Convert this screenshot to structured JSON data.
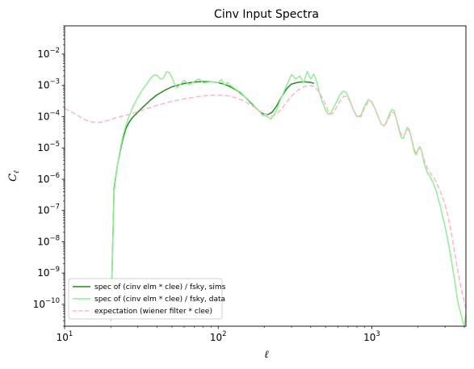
{
  "chart_data": {
    "type": "line",
    "title": "Cinv Input Spectra",
    "xlabel": "ℓ",
    "ylabel": "Cℓ",
    "xscale": "log",
    "yscale": "log",
    "xlim": [
      10,
      4100
    ],
    "ylim": [
      2e-11,
      0.08
    ],
    "grid": false,
    "legend_position": "lower-left",
    "x_ticks": [
      {
        "value": 10,
        "base": "10",
        "exp": "1"
      },
      {
        "value": 100,
        "base": "10",
        "exp": "2"
      },
      {
        "value": 1000,
        "base": "10",
        "exp": "3"
      }
    ],
    "y_ticks": [
      {
        "value": 1e-10,
        "base": "10",
        "exp": "−10"
      },
      {
        "value": 1e-09,
        "base": "10",
        "exp": "−9"
      },
      {
        "value": 1e-08,
        "base": "10",
        "exp": "−8"
      },
      {
        "value": 1e-07,
        "base": "10",
        "exp": "−7"
      },
      {
        "value": 1e-06,
        "base": "10",
        "exp": "−6"
      },
      {
        "value": 1e-05,
        "base": "10",
        "exp": "−5"
      },
      {
        "value": 0.0001,
        "base": "10",
        "exp": "−4"
      },
      {
        "value": 0.001,
        "base": "10",
        "exp": "−3"
      },
      {
        "value": 0.01,
        "base": "10",
        "exp": "−2"
      }
    ],
    "series": [
      {
        "name": "spec of (cinv elm * clee) / fsky, sims",
        "color": "#228b22",
        "style": "solid",
        "x": [
          20,
          21,
          22,
          23,
          24,
          25,
          26,
          27,
          28,
          30,
          33,
          36,
          40,
          45,
          50,
          60,
          70,
          80,
          90,
          100,
          110,
          120,
          135,
          150,
          165,
          180,
          195,
          210,
          225,
          240,
          260,
          280,
          300,
          330,
          360,
          400,
          420
        ],
        "y": [
          3e-11,
          5e-07,
          2.5e-06,
          8e-06,
          2e-05,
          4e-05,
          6e-05,
          8e-05,
          0.0001,
          0.00014,
          0.00022,
          0.00033,
          0.0005,
          0.0007,
          0.0009,
          0.00115,
          0.00128,
          0.00132,
          0.0013,
          0.00122,
          0.00108,
          0.0009,
          0.00065,
          0.00042,
          0.00026,
          0.00017,
          0.000125,
          0.000115,
          0.00014,
          0.00022,
          0.00045,
          0.0008,
          0.0011,
          0.00125,
          0.0013,
          0.00125,
          0.00115
        ]
      },
      {
        "name": "spec of (cinv elm * clee) / fsky, data",
        "color": "#90ee90",
        "style": "solid",
        "x": [
          20,
          21,
          22,
          23,
          24,
          25,
          26,
          27,
          28,
          30,
          32,
          34,
          36,
          38,
          40,
          42,
          44,
          46,
          48,
          50,
          52,
          54,
          57,
          60,
          65,
          70,
          75,
          80,
          90,
          100,
          105,
          110,
          115,
          120,
          130,
          140,
          150,
          165,
          180,
          195,
          210,
          220,
          230,
          240,
          250,
          260,
          280,
          300,
          320,
          340,
          360,
          380,
          400,
          420,
          440,
          460,
          480,
          500,
          520,
          540,
          560,
          590,
          620,
          650,
          680,
          700,
          720,
          760,
          800,
          850,
          900,
          950,
          1000,
          1050,
          1100,
          1150,
          1200,
          1250,
          1300,
          1350,
          1400,
          1450,
          1500,
          1550,
          1600,
          1650,
          1700,
          1750,
          1800,
          1850,
          1900,
          1950,
          2000,
          2050,
          2100,
          2150,
          2200,
          2300,
          2400,
          2500,
          2600,
          2700,
          2800,
          2900,
          3000,
          3100,
          3200,
          3300,
          3400,
          3500,
          3600,
          3700,
          3800,
          3900,
          4000,
          4100
        ],
        "y": [
          3e-11,
          4e-07,
          2.5e-06,
          9e-06,
          2.5e-05,
          5e-05,
          9e-05,
          0.00014,
          0.00022,
          0.00042,
          0.0007,
          0.00105,
          0.0016,
          0.0021,
          0.0021,
          0.0016,
          0.0017,
          0.0027,
          0.0026,
          0.0018,
          0.0011,
          0.00085,
          0.0011,
          0.00145,
          0.00105,
          0.00135,
          0.0016,
          0.0012,
          0.0013,
          0.0012,
          0.00155,
          0.001,
          0.00125,
          0.001,
          0.00075,
          0.0006,
          0.00042,
          0.00028,
          0.00017,
          0.00011,
          0.0001,
          8.5e-05,
          0.00011,
          0.00016,
          0.00028,
          0.00045,
          0.00105,
          0.0022,
          0.0016,
          0.002,
          0.0012,
          0.0028,
          0.0016,
          0.0023,
          0.0012,
          0.0005,
          0.00027,
          0.00016,
          0.00012,
          0.00013,
          0.00018,
          0.0003,
          0.0005,
          0.00065,
          0.0006,
          0.00045,
          0.00033,
          0.00016,
          0.0001,
          0.00011,
          0.00023,
          0.00035,
          0.0003,
          0.00018,
          0.0001,
          6e-05,
          5e-05,
          7e-05,
          0.00012,
          0.00017,
          0.00015,
          8e-05,
          4e-05,
          2.2e-05,
          2e-05,
          3e-05,
          4.5e-05,
          4e-05,
          2.3e-05,
          1.2e-05,
          7e-06,
          6e-06,
          9e-06,
          1.1e-05,
          9e-06,
          5e-06,
          3e-06,
          1.6e-06,
          1.2e-06,
          8e-07,
          5e-07,
          2.5e-07,
          1.3e-07,
          6e-08,
          3e-08,
          1.4e-08,
          6e-09,
          2.5e-09,
          1e-09,
          4e-10,
          1.5e-10,
          8e-11,
          5e-11,
          3e-11,
          2e-11,
          5e-11
        ]
      },
      {
        "name": "expectation (wiener filter * clee)",
        "color": "#ffb6c1",
        "style": "dashed",
        "x": [
          10,
          11,
          12,
          13,
          14,
          15,
          16,
          17,
          18,
          20,
          22,
          25,
          28,
          32,
          36,
          40,
          45,
          50,
          60,
          70,
          80,
          90,
          100,
          110,
          120,
          135,
          150,
          165,
          180,
          195,
          210,
          225,
          240,
          260,
          280,
          300,
          330,
          360,
          400,
          420,
          450,
          480,
          500,
          520,
          540,
          560,
          590,
          620,
          650,
          680,
          700,
          720,
          760,
          800,
          850,
          900,
          950,
          1000,
          1050,
          1100,
          1150,
          1200,
          1250,
          1300,
          1350,
          1400,
          1450,
          1500,
          1550,
          1600,
          1650,
          1700,
          1750,
          1800,
          1850,
          1900,
          1950,
          2000,
          2050,
          2100,
          2150,
          2200,
          2300,
          2400,
          2500,
          2600,
          2700,
          2800,
          2900,
          3000,
          3100,
          3200,
          3300,
          3400,
          3500,
          3600,
          3700,
          3800,
          3900,
          4000,
          4100
        ],
        "y": [
          0.00018,
          0.000145,
          0.000115,
          9e-05,
          7.5e-05,
          6.8e-05,
          6.5e-05,
          6.6e-05,
          7e-05,
          8e-05,
          9.5e-05,
          0.00011,
          0.00013,
          0.00016,
          0.000195,
          0.00023,
          0.00027,
          0.00031,
          0.00037,
          0.00042,
          0.00046,
          0.00048,
          0.00049,
          0.00048,
          0.00045,
          0.00038,
          0.0003,
          0.00023,
          0.00017,
          0.00013,
          0.00011,
          0.000105,
          0.00012,
          0.00018,
          0.0003,
          0.00045,
          0.0007,
          0.0009,
          0.001,
          0.00092,
          0.00065,
          0.00038,
          0.00024,
          0.00015,
          0.00012,
          0.00013,
          0.0002,
          0.00032,
          0.00043,
          0.00045,
          0.00039,
          0.00031,
          0.00017,
          0.0001,
          0.0001,
          0.00019,
          0.0003,
          0.00028,
          0.00018,
          0.0001,
          6e-05,
          5e-05,
          6.5e-05,
          0.0001,
          0.00014,
          0.00013,
          8e-05,
          4.5e-05,
          2.7e-05,
          2.2e-05,
          2.8e-05,
          3.8e-05,
          3.6e-05,
          2.4e-05,
          1.4e-05,
          8.5e-06,
          7e-06,
          8.5e-06,
          1e-05,
          8.5e-06,
          6e-06,
          4e-06,
          2.2e-06,
          1.6e-06,
          1.2e-06,
          9e-07,
          6e-07,
          4e-07,
          2.5e-07,
          1.5e-07,
          8e-08,
          4e-08,
          1.8e-08,
          8e-09,
          3.5e-09,
          1.5e-09,
          7e-10,
          3.5e-10,
          2e-10,
          1.2e-10,
          7e-11
        ]
      }
    ]
  }
}
